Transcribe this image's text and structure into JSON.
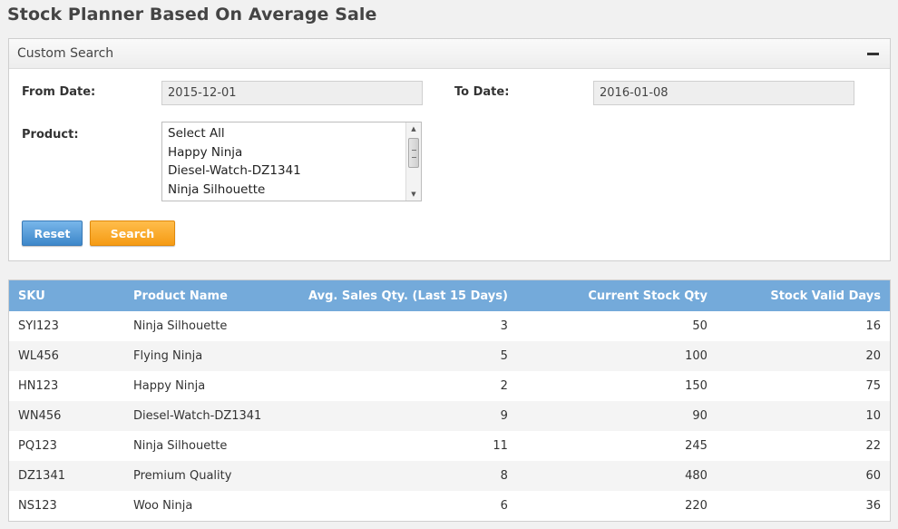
{
  "page": {
    "title": "Stock Planner Based On Average Sale"
  },
  "search_panel": {
    "title": "Custom Search",
    "from_date_label": "From Date:",
    "from_date_value": "2015-12-01",
    "to_date_label": "To Date:",
    "to_date_value": "2016-01-08",
    "product_label": "Product:",
    "product_options": [
      "Select All",
      "Happy Ninja",
      "Diesel-Watch-DZ1341",
      "Ninja Silhouette"
    ],
    "reset_label": "Reset",
    "search_label": "Search"
  },
  "table": {
    "headers": [
      "SKU",
      "Product Name",
      "Avg. Sales Qty. (Last 15 Days)",
      "Current Stock Qty",
      "Stock Valid Days"
    ],
    "rows": [
      [
        "SYI123",
        "Ninja Silhouette",
        "3",
        "50",
        "16"
      ],
      [
        "WL456",
        "Flying Ninja",
        "5",
        "100",
        "20"
      ],
      [
        "HN123",
        "Happy Ninja",
        "2",
        "150",
        "75"
      ],
      [
        "WN456",
        "Diesel-Watch-DZ1341",
        "9",
        "90",
        "10"
      ],
      [
        "PQ123",
        "Ninja Silhouette",
        "11",
        "245",
        "22"
      ],
      [
        "DZ1341",
        "Premium Quality",
        "8",
        "480",
        "60"
      ],
      [
        "NS123",
        "Woo Ninja",
        "6",
        "220",
        "36"
      ]
    ]
  },
  "colors": {
    "header_blue": "#74aada",
    "reset_blue": "#4a93d6",
    "search_orange": "#f7a325"
  }
}
